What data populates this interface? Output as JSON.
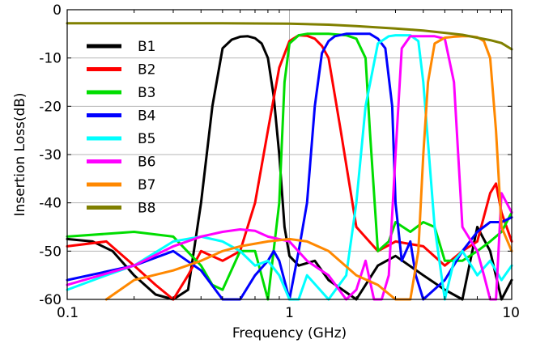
{
  "chart_data": {
    "type": "line",
    "xlabel": "Frequency (GHz)",
    "ylabel": "Insertion Loss(dB)",
    "xscale": "log",
    "xlim": [
      0.1,
      10
    ],
    "ylim": [
      -60,
      0
    ],
    "xticks": [
      {
        "value": 0.1,
        "label": "0.1"
      },
      {
        "value": 1,
        "label": "1"
      },
      {
        "value": 10,
        "label": "10"
      }
    ],
    "yticks": [
      {
        "value": 0,
        "label": "0"
      },
      {
        "value": -10,
        "label": "-10"
      },
      {
        "value": -20,
        "label": "-20"
      },
      {
        "value": -30,
        "label": "-30"
      },
      {
        "value": -40,
        "label": "-40"
      },
      {
        "value": -50,
        "label": "-50"
      },
      {
        "value": -60,
        "label": "-60"
      }
    ],
    "grid": "center-crosshair",
    "legend_position": "top-left",
    "series": [
      {
        "name": "B1",
        "color": "#000000",
        "x": [
          0.1,
          0.13,
          0.16,
          0.2,
          0.25,
          0.3,
          0.35,
          0.4,
          0.45,
          0.5,
          0.55,
          0.6,
          0.65,
          0.7,
          0.75,
          0.8,
          0.85,
          0.9,
          0.95,
          1.0,
          1.1,
          1.3,
          1.5,
          2.0,
          2.5,
          3.0,
          4.0,
          5.0,
          6.0,
          7.0,
          8.0,
          9.0,
          10.0
        ],
        "y": [
          -47.5,
          -48,
          -50,
          -55,
          -59,
          -60,
          -58,
          -40,
          -20,
          -8,
          -6.2,
          -5.6,
          -5.5,
          -5.9,
          -7,
          -10,
          -18,
          -30,
          -45,
          -51,
          -53,
          -52,
          -56,
          -60,
          -53,
          -51,
          -55,
          -58,
          -60,
          -45,
          -50,
          -60,
          -56
        ]
      },
      {
        "name": "B2",
        "color": "#ff0000",
        "x": [
          0.1,
          0.15,
          0.2,
          0.25,
          0.3,
          0.35,
          0.4,
          0.5,
          0.6,
          0.7,
          0.8,
          0.9,
          1.0,
          1.1,
          1.2,
          1.3,
          1.4,
          1.5,
          1.7,
          2.0,
          2.5,
          3.0,
          4.0,
          5.0,
          6.0,
          7.0,
          8.0,
          8.5,
          9.0,
          10.0
        ],
        "y": [
          -49,
          -48,
          -53,
          -57,
          -60,
          -55,
          -50,
          -52,
          -50,
          -40,
          -25,
          -12,
          -6.5,
          -5.3,
          -5.4,
          -6,
          -7.5,
          -10,
          -25,
          -45,
          -50,
          -48,
          -49,
          -53,
          -50,
          -48,
          -38,
          -36,
          -42,
          -48
        ]
      },
      {
        "name": "B3",
        "color": "#00dd00",
        "x": [
          0.1,
          0.2,
          0.3,
          0.4,
          0.45,
          0.5,
          0.6,
          0.7,
          0.8,
          0.9,
          0.95,
          1.0,
          1.1,
          1.2,
          1.5,
          1.8,
          2.0,
          2.2,
          2.3,
          2.5,
          2.8,
          3.0,
          3.5,
          4.0,
          4.5,
          5.0,
          6.0,
          7.0,
          8.0,
          9.0,
          10.0
        ],
        "y": [
          -47,
          -46,
          -47,
          -53,
          -57,
          -58,
          -50,
          -50,
          -60,
          -40,
          -15,
          -7,
          -5.3,
          -5,
          -5,
          -5.3,
          -6,
          -10,
          -25,
          -50,
          -48,
          -44,
          -46,
          -44,
          -45,
          -52,
          -52,
          -50,
          -48,
          -46,
          -42
        ]
      },
      {
        "name": "B4",
        "color": "#0000ff",
        "x": [
          0.1,
          0.2,
          0.3,
          0.4,
          0.5,
          0.6,
          0.7,
          0.8,
          0.85,
          0.9,
          1.0,
          1.1,
          1.2,
          1.3,
          1.4,
          1.5,
          1.6,
          1.8,
          2.0,
          2.3,
          2.5,
          2.7,
          2.9,
          3.0,
          3.2,
          3.5,
          3.7,
          4.0,
          5.0,
          6.0,
          7.0,
          8.0,
          9.0,
          10.0
        ],
        "y": [
          -56,
          -53,
          -50,
          -54,
          -60,
          -60,
          -55,
          -52,
          -50,
          -52,
          -60,
          -50,
          -40,
          -20,
          -9,
          -6.5,
          -5.5,
          -5,
          -5,
          -5,
          -6,
          -8,
          -20,
          -40,
          -52,
          -48,
          -55,
          -60,
          -56,
          -50,
          -46,
          -44,
          -44,
          -43
        ]
      },
      {
        "name": "B5",
        "color": "#00ffff",
        "x": [
          0.1,
          0.15,
          0.2,
          0.3,
          0.4,
          0.5,
          0.6,
          0.7,
          0.8,
          0.9,
          1.0,
          1.1,
          1.2,
          1.5,
          1.8,
          2.0,
          2.2,
          2.5,
          2.8,
          3.0,
          3.5,
          3.8,
          4.0,
          4.5,
          5.0,
          5.5,
          6.0,
          7.0,
          8.0,
          9.0,
          10.0
        ],
        "y": [
          -58,
          -55,
          -53,
          -48,
          -47,
          -48,
          -50,
          -53,
          -52,
          -55,
          -60,
          -60,
          -55,
          -60,
          -55,
          -40,
          -20,
          -7,
          -5.5,
          -5.3,
          -5.3,
          -6.5,
          -15,
          -45,
          -60,
          -52,
          -50,
          -55,
          -52,
          -56,
          -53
        ]
      },
      {
        "name": "B6",
        "color": "#ff00ff",
        "x": [
          0.1,
          0.2,
          0.3,
          0.4,
          0.5,
          0.6,
          0.7,
          0.8,
          1.0,
          1.2,
          1.5,
          1.8,
          2.0,
          2.2,
          2.4,
          2.6,
          2.8,
          3.0,
          3.2,
          3.5,
          4.0,
          4.5,
          5.0,
          5.5,
          6.0,
          7.0,
          7.5,
          8.0,
          8.5,
          9.0,
          10.0
        ],
        "y": [
          -57,
          -53,
          -49,
          -47,
          -46,
          -45.5,
          -45.8,
          -47,
          -48,
          -52,
          -55,
          -60,
          -58,
          -52,
          -60,
          -60,
          -55,
          -30,
          -8,
          -5.5,
          -5.5,
          -5.5,
          -6,
          -15,
          -45,
          -50,
          -55,
          -60,
          -60,
          -38,
          -42
        ]
      },
      {
        "name": "B7",
        "color": "#ff8800",
        "x": [
          0.15,
          0.2,
          0.3,
          0.4,
          0.5,
          0.6,
          0.8,
          1.0,
          1.2,
          1.5,
          2.0,
          2.5,
          3.0,
          3.5,
          3.8,
          4.0,
          4.2,
          4.5,
          5.0,
          5.5,
          6.0,
          6.5,
          7.0,
          7.5,
          8.0,
          8.5,
          9.0,
          10.0
        ],
        "y": [
          -60,
          -56,
          -54,
          -52,
          -50,
          -49,
          -48,
          -47.5,
          -48,
          -50,
          -55,
          -57,
          -60,
          -60,
          -50,
          -30,
          -15,
          -7,
          -5.8,
          -5.6,
          -5.5,
          -5.5,
          -5.7,
          -6.5,
          -10,
          -25,
          -45,
          -50
        ]
      },
      {
        "name": "B8",
        "color": "#808000",
        "x": [
          0.1,
          0.5,
          1.0,
          1.5,
          2.0,
          3.0,
          4.0,
          5.0,
          6.0,
          7.0,
          8.0,
          9.0,
          10.0
        ],
        "y": [
          -2.8,
          -2.8,
          -2.9,
          -3.1,
          -3.4,
          -3.9,
          -4.3,
          -4.8,
          -5.2,
          -5.8,
          -6.3,
          -6.9,
          -8.2
        ]
      }
    ]
  }
}
